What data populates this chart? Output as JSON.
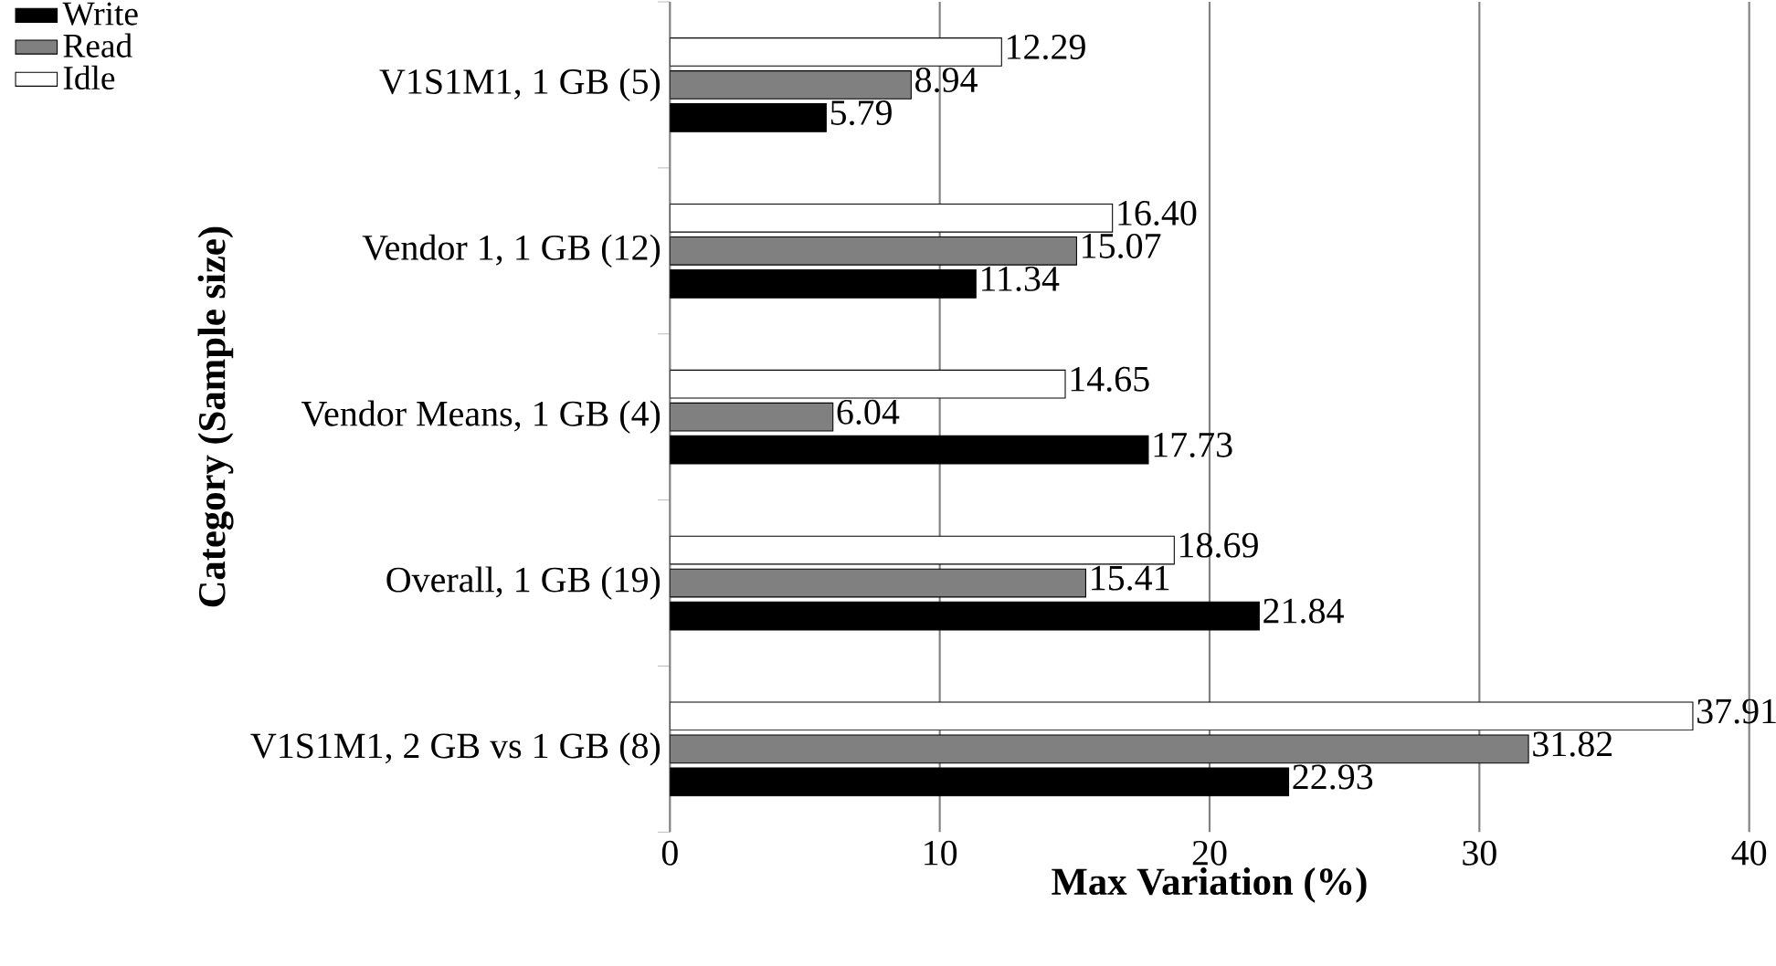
{
  "chart_data": {
    "type": "bar",
    "orientation": "horizontal",
    "xlabel": "Max Variation (%)",
    "ylabel": "Category (Sample size)",
    "categories": [
      "V1S1M1, 1 GB (5)",
      "Vendor 1, 1 GB (12)",
      "Vendor Means, 1 GB (4)",
      "Overall, 1 GB (19)",
      "V1S1M1, 2 GB vs 1 GB (8)"
    ],
    "series": [
      {
        "name": "Write",
        "color": "#000000",
        "values": [
          5.79,
          11.34,
          17.73,
          21.84,
          22.93
        ],
        "value_labels": [
          "5.79",
          "11.34",
          "17.73",
          "21.84",
          "22.93"
        ]
      },
      {
        "name": "Read",
        "color": "#808080",
        "values": [
          8.94,
          15.07,
          6.04,
          15.41,
          31.82
        ],
        "value_labels": [
          "8.94",
          "15.07",
          "6.04",
          "15.41",
          "31.82"
        ]
      },
      {
        "name": "Idle",
        "color": "#ffffff",
        "values": [
          12.29,
          16.4,
          14.65,
          18.69,
          37.91
        ],
        "value_labels": [
          "12.29",
          "16.40",
          "14.65",
          "18.69",
          "37.91"
        ]
      }
    ],
    "xlim": [
      0,
      40
    ],
    "xticks": [
      0,
      10,
      20,
      30,
      40
    ],
    "grid": "x",
    "legend": "top left"
  }
}
